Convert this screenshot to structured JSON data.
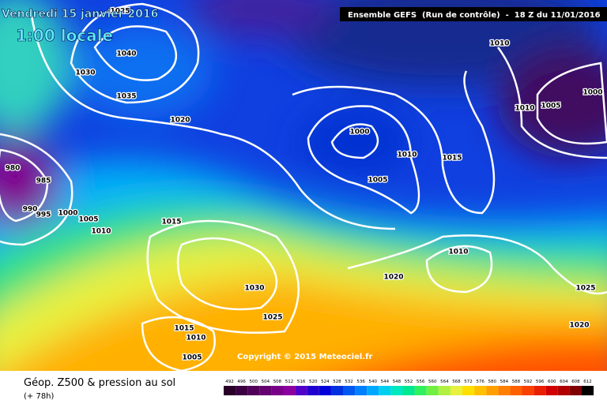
{
  "header": {
    "date": "Vendredi 15 janvier 2016",
    "local_time": "1:00 locale",
    "run": "Ensemble GEFS  (Run de contrôle)  -  18 Z du 11/01/2016",
    "copyright": "Copyright © 2015 Meteociel.fr"
  },
  "legend": {
    "title": "Géop. Z500 & pression au sol",
    "lead": "(+ 78h)"
  },
  "colorbar": {
    "ticks": [
      492,
      496,
      500,
      504,
      508,
      512,
      516,
      520,
      524,
      528,
      532,
      536,
      540,
      544,
      548,
      552,
      556,
      560,
      564,
      568,
      572,
      576,
      580,
      584,
      588,
      592,
      596,
      600,
      604,
      608,
      612
    ],
    "colors": [
      "#2a0028",
      "#3c0040",
      "#500058",
      "#640070",
      "#780088",
      "#8c00a0",
      "#5000c8",
      "#2000d0",
      "#0000d8",
      "#0030e0",
      "#0058f0",
      "#0080ff",
      "#00a8ff",
      "#00d0f0",
      "#00e8c0",
      "#00e890",
      "#30f060",
      "#70f040",
      "#b0f040",
      "#e8f040",
      "#ffe000",
      "#ffc000",
      "#ffa000",
      "#ff8000",
      "#ff6000",
      "#f84000",
      "#e82000",
      "#d00000",
      "#b00000",
      "#800000",
      "#000000"
    ]
  },
  "isobar_labels": [
    1025,
    1040,
    1030,
    1035,
    1020,
    980,
    985,
    990,
    995,
    1000,
    1005,
    1010,
    1015,
    1030,
    1025,
    1015,
    1010,
    1005,
    1000,
    1010,
    1005,
    1015,
    1010,
    1010,
    1005,
    1000,
    1010,
    1020,
    1025,
    1020
  ]
}
